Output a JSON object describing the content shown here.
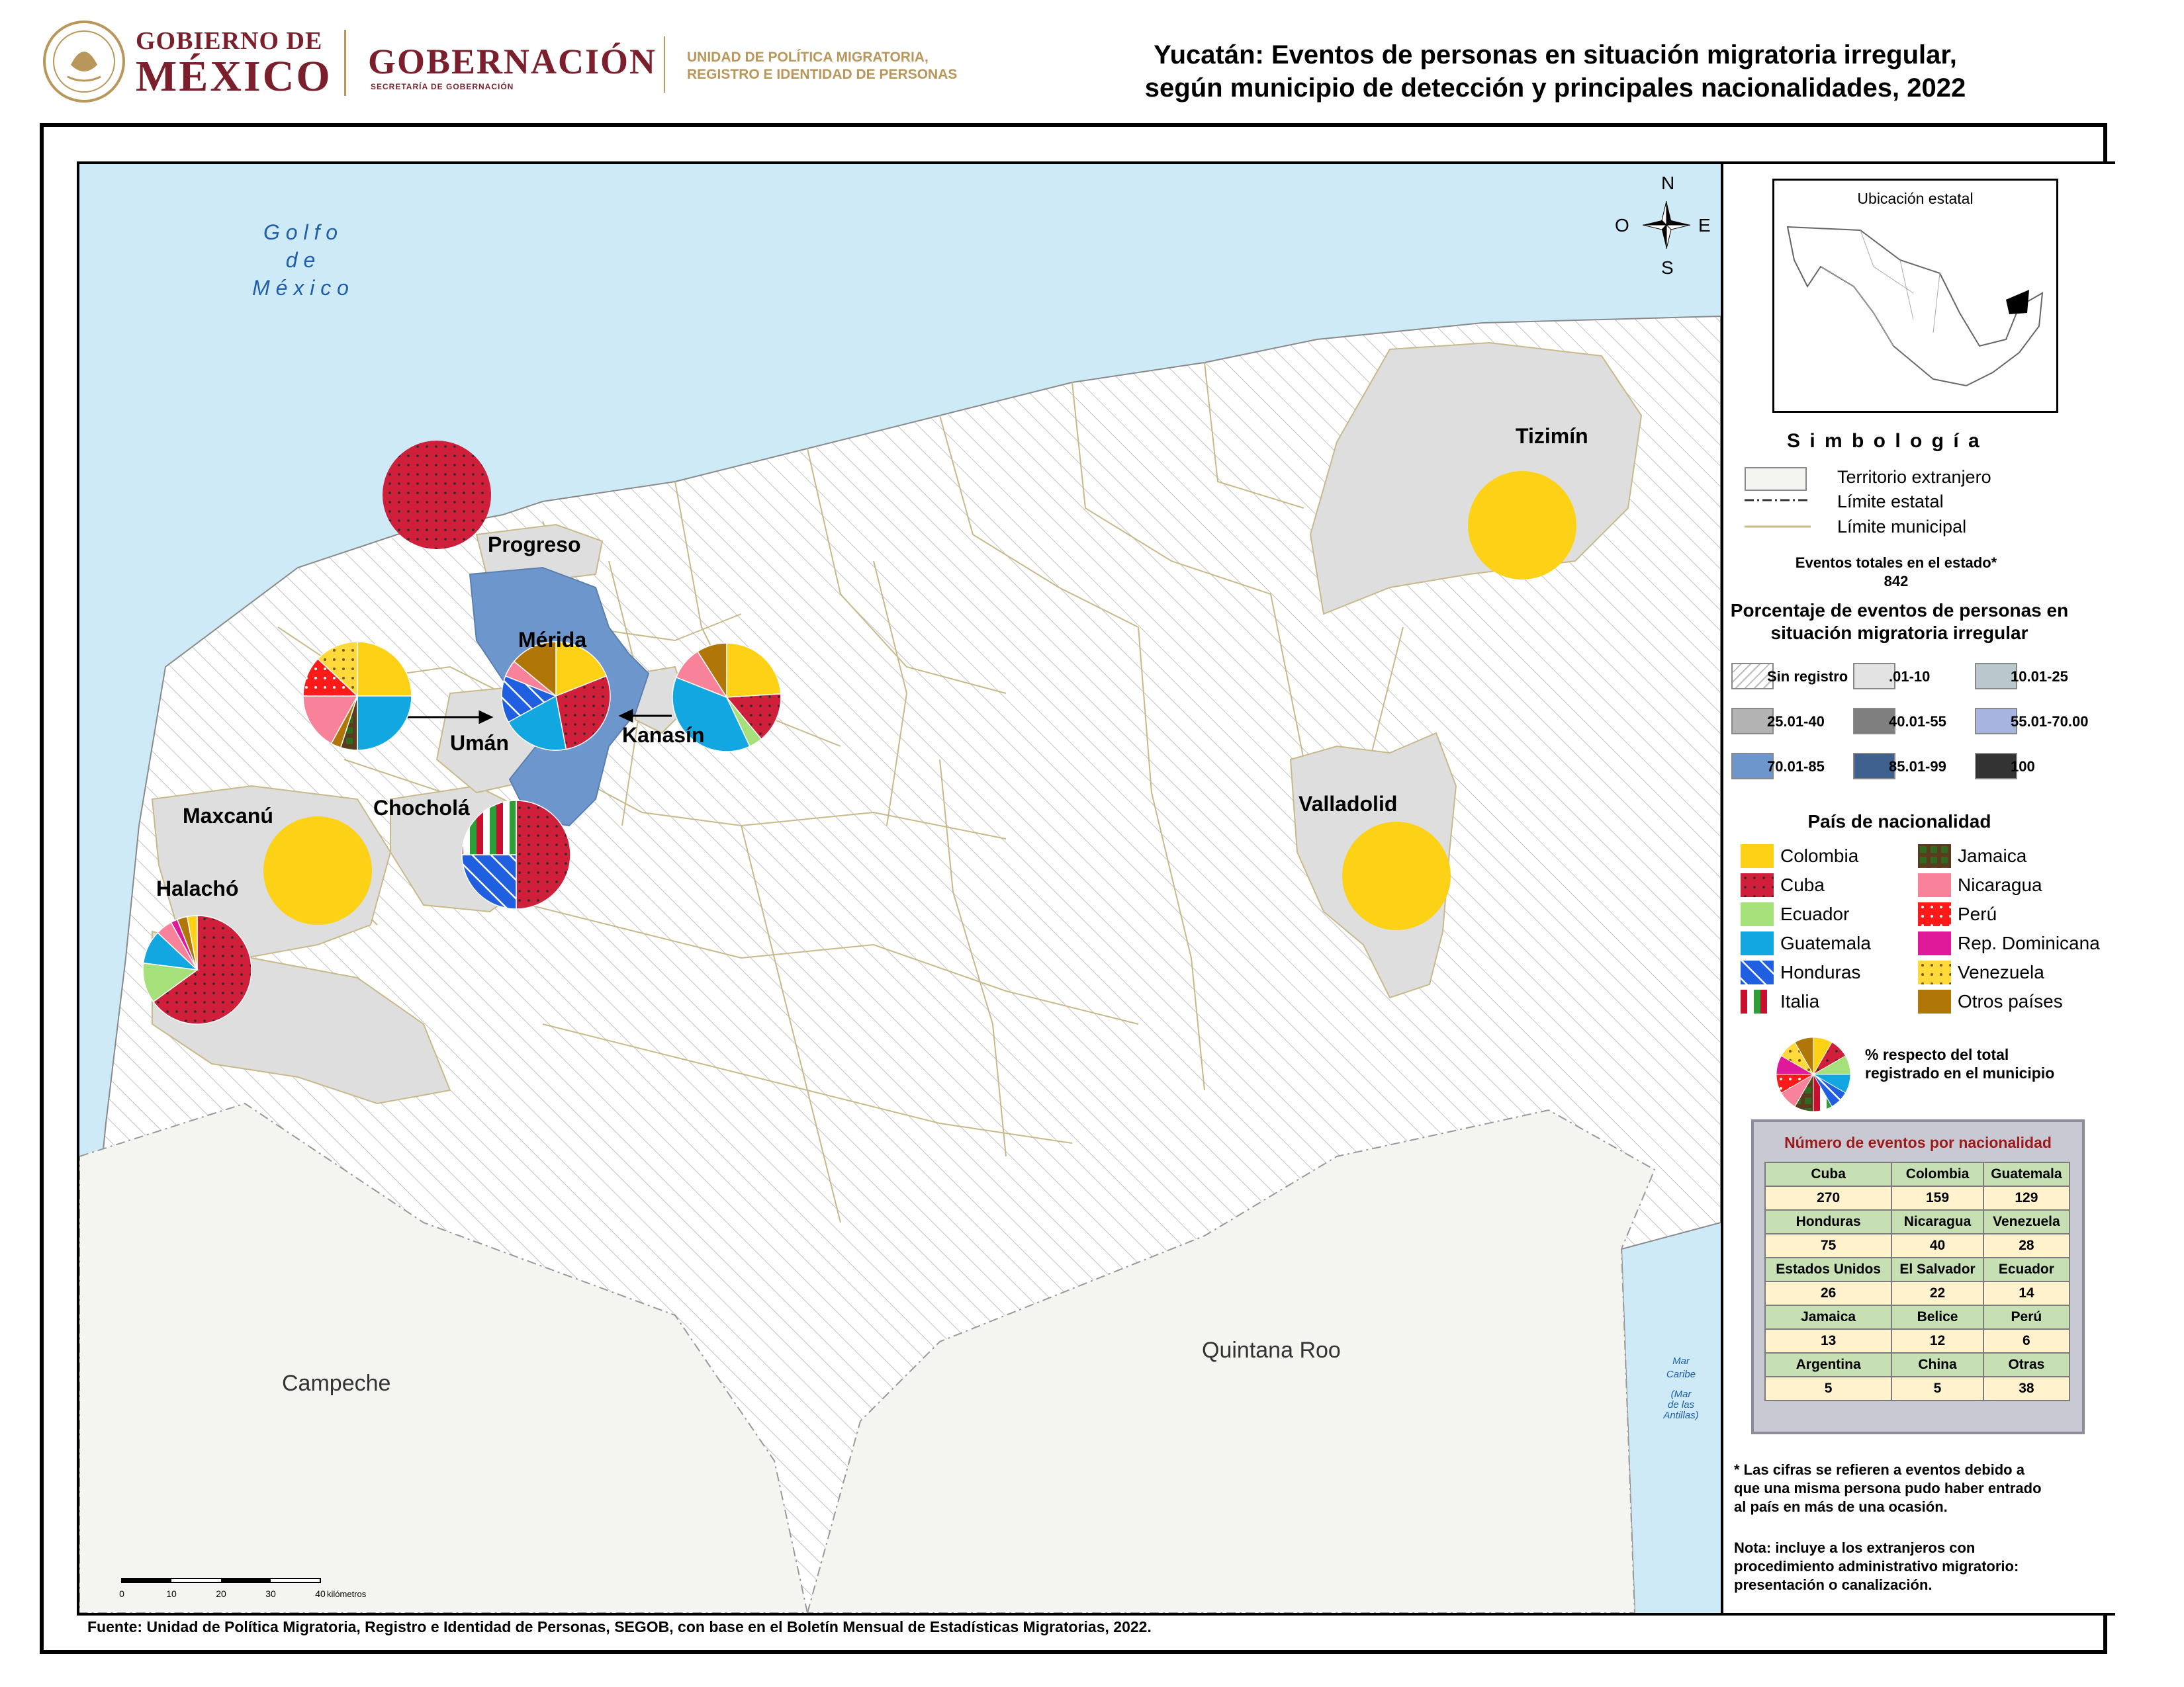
{
  "header": {
    "gob_line1": "GOBIERNO DE",
    "gob_line2": "MÉXICO",
    "gobernacion": "GOBERNACIÓN",
    "secretaria": "SECRETARÍA DE GOBERNACIÓN",
    "unit_line1": "UNIDAD DE POLÍTICA MIGRATORIA,",
    "unit_line2": "REGISTRO E IDENTIDAD DE PERSONAS",
    "seal_text": "ESTADOS UNIDOS MEXICANOS"
  },
  "title": {
    "line1": "Yucatán: Eventos de personas en situación migratoria irregular,",
    "line2": "según municipio de detección y principales nacionalidades, 2022"
  },
  "map": {
    "sea_label": [
      "G o l f o",
      "d e",
      "M é x i c o"
    ],
    "caribe_label": [
      "Mar",
      "Caribe",
      "(Mar",
      "de las",
      "Antillas)"
    ],
    "neighbors": {
      "campeche": "Campeche",
      "quintana_roo": "Quintana Roo"
    },
    "compass": {
      "n": "N",
      "s": "S",
      "e": "E",
      "o": "O"
    },
    "municipalities": {
      "progreso": "Progreso",
      "merida": "Mérida",
      "kanasin": "Kanasín",
      "uman": "Umán",
      "maxcanu": "Maxcanú",
      "chochola": "Chocholá",
      "halacho": "Halachó",
      "tizimin": "Tizimín",
      "valladolid": "Valladolid"
    },
    "scale": {
      "ticks": [
        "0",
        "10",
        "20",
        "30",
        "40"
      ],
      "unit": "kilómetros"
    },
    "colors": {
      "sea": "#cfeaf7",
      "land": "#ffffff",
      "municipal_line": "#c9b98a",
      "merida": "#6d97cc",
      "gray_class": "#dedede"
    }
  },
  "nationalities": {
    "colombia": {
      "label": "Colombia",
      "color": "#fcd116"
    },
    "cuba": {
      "label": "Cuba",
      "color": "#cf1f3a"
    },
    "ecuador": {
      "label": "Ecuador",
      "color": "#a6e07a"
    },
    "guatemala": {
      "label": "Guatemala",
      "color": "#12a7e0"
    },
    "honduras": {
      "label": "Honduras",
      "color": "#1f5fe0"
    },
    "italia": {
      "label": "Italia",
      "color": "#c8102e"
    },
    "jamaica": {
      "label": "Jamaica",
      "color": "#2e6b1f"
    },
    "nicaragua": {
      "label": "Nicaragua",
      "color": "#f7829a"
    },
    "peru": {
      "label": "Perú",
      "color": "#ff1a1a"
    },
    "rep_dominicana": {
      "label": "Rep. Dominicana",
      "color": "#e0189a"
    },
    "venezuela": {
      "label": "Venezuela",
      "color": "#ffd93a"
    },
    "otros": {
      "label": "Otros países",
      "color": "#b07608"
    }
  },
  "pies": [
    {
      "municipality": "progreso",
      "slices": [
        {
          "n": "cuba",
          "v": 100
        }
      ]
    },
    {
      "municipality": "tizimin",
      "slices": [
        {
          "n": "colombia",
          "v": 100
        }
      ]
    },
    {
      "municipality": "valladolid",
      "slices": [
        {
          "n": "colombia",
          "v": 100
        }
      ]
    },
    {
      "municipality": "maxcanu",
      "slices": [
        {
          "n": "colombia",
          "v": 100
        }
      ]
    },
    {
      "municipality": "uman",
      "slices": [
        {
          "n": "colombia",
          "v": 25
        },
        {
          "n": "guatemala",
          "v": 25
        },
        {
          "n": "jamaica",
          "v": 5
        },
        {
          "n": "otros",
          "v": 3
        },
        {
          "n": "nicaragua",
          "v": 17
        },
        {
          "n": "peru",
          "v": 12
        },
        {
          "n": "venezuela",
          "v": 13
        }
      ]
    },
    {
      "municipality": "merida",
      "slices": [
        {
          "n": "colombia",
          "v": 19
        },
        {
          "n": "cuba",
          "v": 28
        },
        {
          "n": "guatemala",
          "v": 20
        },
        {
          "n": "honduras",
          "v": 14
        },
        {
          "n": "nicaragua",
          "v": 5
        },
        {
          "n": "otros",
          "v": 14
        }
      ]
    },
    {
      "municipality": "kanasin",
      "slices": [
        {
          "n": "colombia",
          "v": 24
        },
        {
          "n": "cuba",
          "v": 15
        },
        {
          "n": "ecuador",
          "v": 4
        },
        {
          "n": "guatemala",
          "v": 38
        },
        {
          "n": "nicaragua",
          "v": 10
        },
        {
          "n": "otros",
          "v": 9
        }
      ]
    },
    {
      "municipality": "chochola",
      "slices": [
        {
          "n": "cuba",
          "v": 50
        },
        {
          "n": "honduras",
          "v": 25
        },
        {
          "n": "italia",
          "v": 25
        }
      ]
    },
    {
      "municipality": "halacho",
      "slices": [
        {
          "n": "cuba",
          "v": 65
        },
        {
          "n": "ecuador",
          "v": 12
        },
        {
          "n": "guatemala",
          "v": 10
        },
        {
          "n": "nicaragua",
          "v": 5
        },
        {
          "n": "rep_dominicana",
          "v": 2
        },
        {
          "n": "otros",
          "v": 3
        },
        {
          "n": "colombia",
          "v": 3
        }
      ]
    }
  ],
  "legend": {
    "inset_title": "Ubicación estatal",
    "simbologia": "S i m b o l o g í a",
    "territorio": "Territorio extranjero",
    "limite_estatal": "Límite estatal",
    "limite_municipal": "Límite municipal",
    "total_label": "Eventos totales en el estado*",
    "total_value": "842",
    "pct_title_1": "Porcentaje de eventos de personas en",
    "pct_title_2": "situación migratoria irregular",
    "classes": [
      {
        "label": "Sin registro",
        "color": "#ffffff"
      },
      {
        "label": ".01-10",
        "color": "#e3e3e3"
      },
      {
        "label": "10.01-25",
        "color": "#b8c8cc"
      },
      {
        "label": "25.01-40",
        "color": "#b3b3b3"
      },
      {
        "label": "40.01-55",
        "color": "#7f7f7f"
      },
      {
        "label": "55.01-70.00",
        "color": "#a8b4e0"
      },
      {
        "label": "70.01-85",
        "color": "#6d97cc"
      },
      {
        "label": "85.01-99",
        "color": "#3e6190"
      },
      {
        "label": "100",
        "color": "#333333"
      }
    ],
    "nat_title": "País de nacionalidad",
    "pie_note_1": "% respecto del total",
    "pie_note_2": "registrado en el municipio"
  },
  "events_table": {
    "title": "Número de eventos por nacionalidad",
    "rows": [
      {
        "headers": [
          "Cuba",
          "Colombia",
          "Guatemala"
        ],
        "values": [
          "270",
          "159",
          "129"
        ]
      },
      {
        "headers": [
          "Honduras",
          "Nicaragua",
          "Venezuela"
        ],
        "values": [
          "75",
          "40",
          "28"
        ]
      },
      {
        "headers": [
          "Estados Unidos",
          "El Salvador",
          "Ecuador"
        ],
        "values": [
          "26",
          "22",
          "14"
        ]
      },
      {
        "headers": [
          "Jamaica",
          "Belice",
          "Perú"
        ],
        "values": [
          "13",
          "12",
          "6"
        ]
      },
      {
        "headers": [
          "Argentina",
          "China",
          "Otras"
        ],
        "values": [
          "5",
          "5",
          "38"
        ]
      }
    ]
  },
  "notes": {
    "n1_l1": "* Las cifras se refieren a eventos debido a",
    "n1_l2": "que una misma persona pudo haber entrado",
    "n1_l3": "al país en más de una ocasión.",
    "n2_l1": "Nota: incluye a los extranjeros con",
    "n2_l2": "procedimiento administrativo migratorio:",
    "n2_l3": "presentación o canalización."
  },
  "source": "Fuente: Unidad de Política Migratoria, Registro e Identidad de Personas, SEGOB, con base en el Boletín Mensual de Estadísticas Migratorias, 2022."
}
